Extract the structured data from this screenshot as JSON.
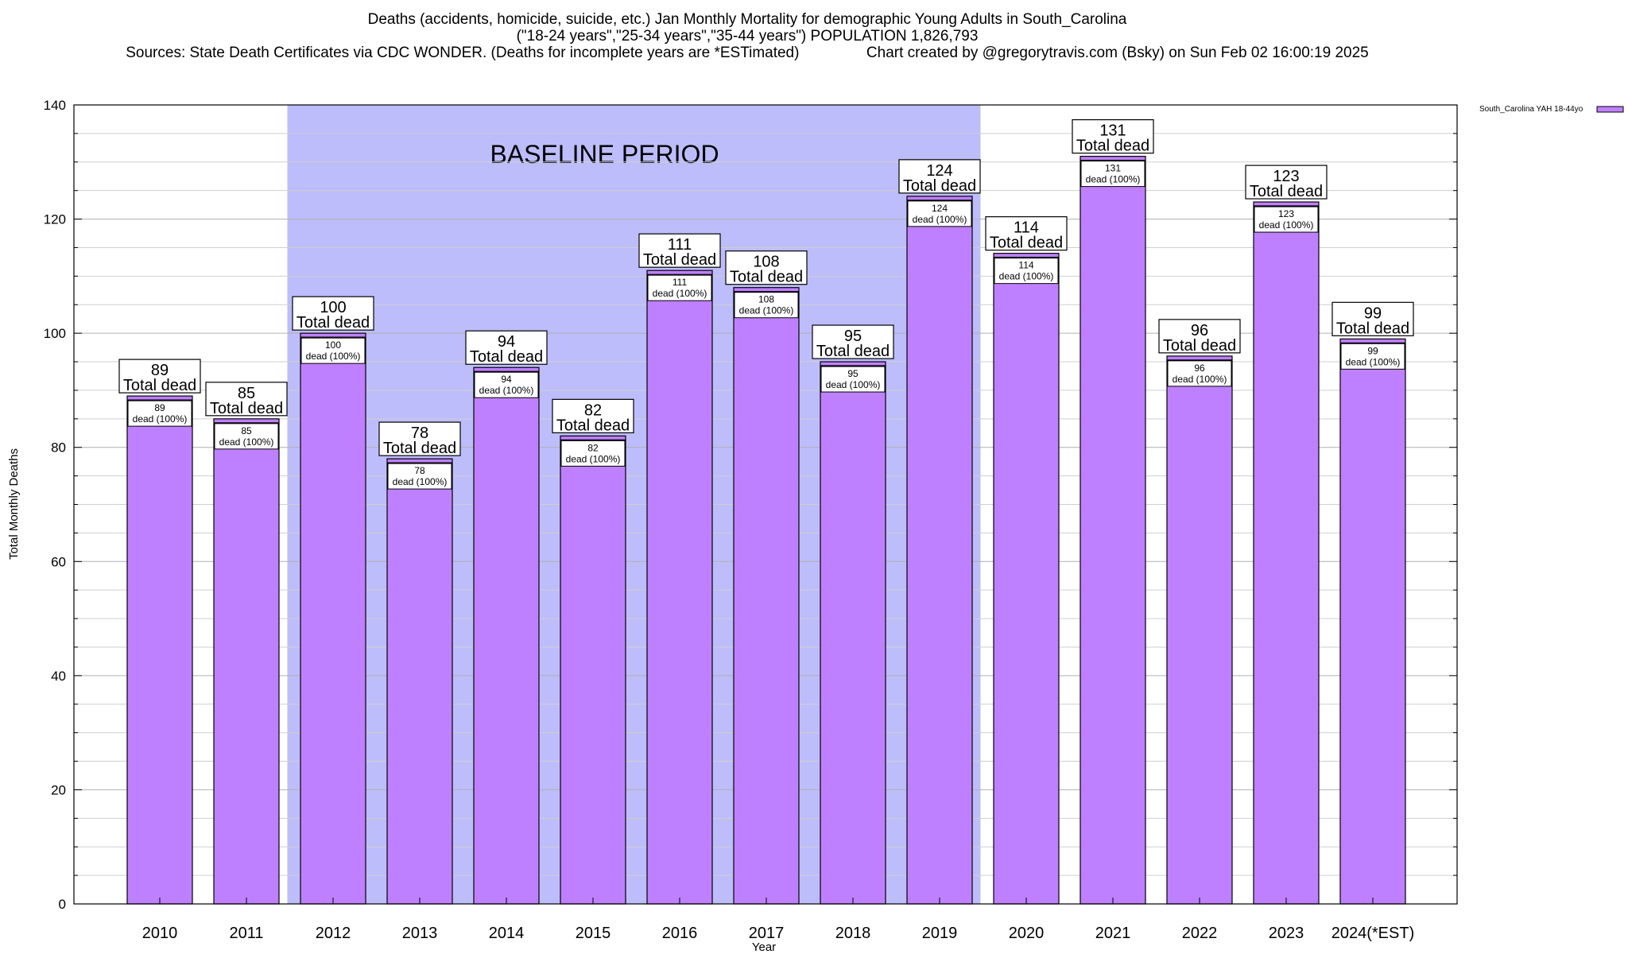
{
  "title": {
    "line1": "Deaths (accidents, homicide, suicide, etc.) Jan Monthly Mortality for demographic Young Adults in South_Carolina",
    "line2": "(\"18-24 years\",\"25-34 years\",\"35-44 years\") POPULATION 1,826,793",
    "line3": "Sources: State Death Certificates via CDC WONDER. (Deaths for incomplete years are *ESTimated)                Chart created by @gregorytravis.com (Bsky) on Sun Feb 02 16:00:19 2025"
  },
  "chart_data": {
    "type": "bar",
    "xlabel": "Year",
    "ylabel": "Total Monthly Deaths",
    "ylim": [
      0,
      140
    ],
    "yticks": [
      0,
      20,
      40,
      60,
      80,
      100,
      120,
      140
    ],
    "grid": true,
    "legend_position": "top-right",
    "categories": [
      "2010",
      "2011",
      "2012",
      "2013",
      "2014",
      "2015",
      "2016",
      "2017",
      "2018",
      "2019",
      "2020",
      "2021",
      "2022",
      "2023",
      "2024(*EST)"
    ],
    "series": [
      {
        "name": "South_Carolina YAH 18-44yo",
        "color": "#bf80ff",
        "values": [
          89,
          85,
          100,
          78,
          94,
          82,
          111,
          108,
          95,
          124,
          114,
          131,
          96,
          123,
          99
        ]
      }
    ],
    "total_label_text": "Total dead",
    "inner_label_text": "dead (100%)",
    "baseline_period": {
      "label": "BASELINE PERIOD",
      "from": "2012",
      "to": "2019",
      "color": "#bdbdfc"
    }
  }
}
